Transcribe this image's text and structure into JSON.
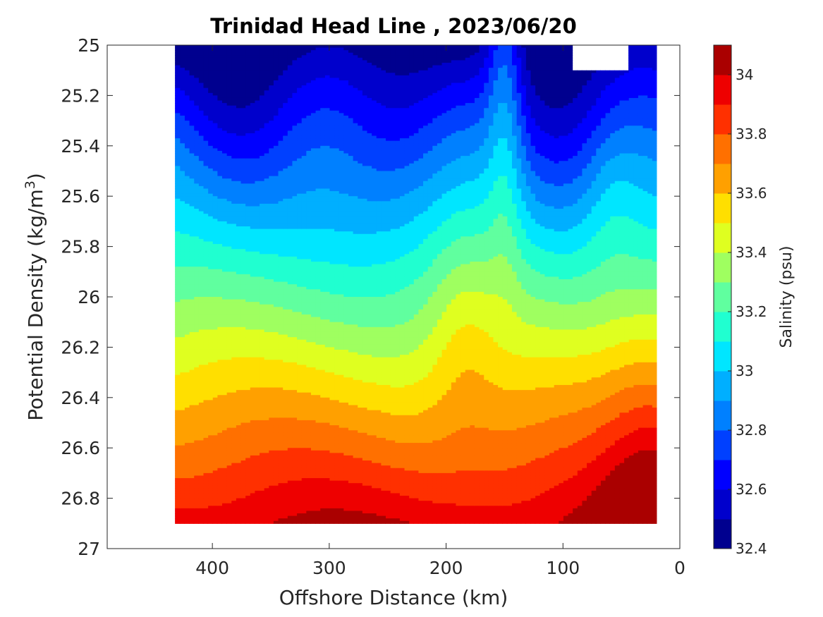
{
  "chart_data": {
    "type": "contour",
    "title": "Trinidad Head Line , 2023/06/20",
    "xlabel": "Offshore Distance (km)",
    "ylabel_main": "Potential Density (kg/m",
    "ylabel_sup": "3",
    "ylabel_close": ")",
    "x_reversed": true,
    "xlim": [
      0,
      490
    ],
    "ylim": [
      25,
      27
    ],
    "y_reversed": true,
    "x_ticks": [
      400,
      300,
      200,
      100,
      0
    ],
    "x_tick_labels": [
      "400",
      "300",
      "200",
      "100",
      "0"
    ],
    "y_ticks": [
      25,
      25.2,
      25.4,
      25.6,
      25.8,
      26,
      26.2,
      26.4,
      26.6,
      26.8,
      27
    ],
    "y_tick_labels": [
      "25",
      "25.2",
      "25.4",
      "25.6",
      "25.8",
      "26",
      "26.2",
      "26.4",
      "26.6",
      "26.8",
      "27"
    ],
    "x_range_data": [
      22,
      430
    ],
    "colorbar": {
      "label": "Salinity (psu)",
      "min": 32.4,
      "max": 34.1,
      "ticks": [
        32.4,
        32.6,
        32.8,
        33,
        33.2,
        33.4,
        33.6,
        33.8,
        34
      ],
      "tick_labels": [
        "32.4",
        "32.6",
        "32.8",
        "33",
        "33.2",
        "33.4",
        "33.6",
        "33.8",
        "34"
      ],
      "colors": [
        "#00008f",
        "#0000cc",
        "#0000ff",
        "#0040ff",
        "#0080ff",
        "#00afff",
        "#00e6ff",
        "#20ffd0",
        "#60ff9f",
        "#9fff60",
        "#dfff20",
        "#ffdf00",
        "#ffa000",
        "#ff7000",
        "#ff3000",
        "#ee0000",
        "#aa0000"
      ]
    },
    "grid": false,
    "legend": "colorbar-right"
  }
}
